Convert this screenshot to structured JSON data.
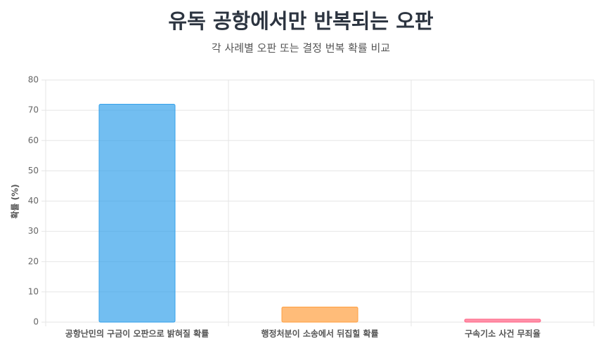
{
  "chart_data": {
    "type": "bar",
    "title": "유독 공항에서만 반복되는 오판",
    "subtitle": "각 사례별 오판 또는 결정 번복 확률 비교",
    "y_label": "확률 (%)",
    "categories": [
      "공항난민의 구금이 오판으로 밝혀질 확률",
      "행정처분이 소송에서 뒤집힐 확률",
      "구속기소 사건 무죄율"
    ],
    "values": [
      72,
      5,
      1
    ],
    "colors": [
      "rgba(54,162,235,0.7)",
      "rgba(255,159,64,0.7)",
      "rgba(255,99,132,0.7)"
    ],
    "border_colors": [
      "#36a2eb",
      "#ff9f40",
      "#ff6384"
    ],
    "ylim": [
      0,
      80
    ],
    "yticks": [
      0,
      10,
      20,
      30,
      40,
      50,
      60,
      70,
      80
    ],
    "grid": true
  }
}
